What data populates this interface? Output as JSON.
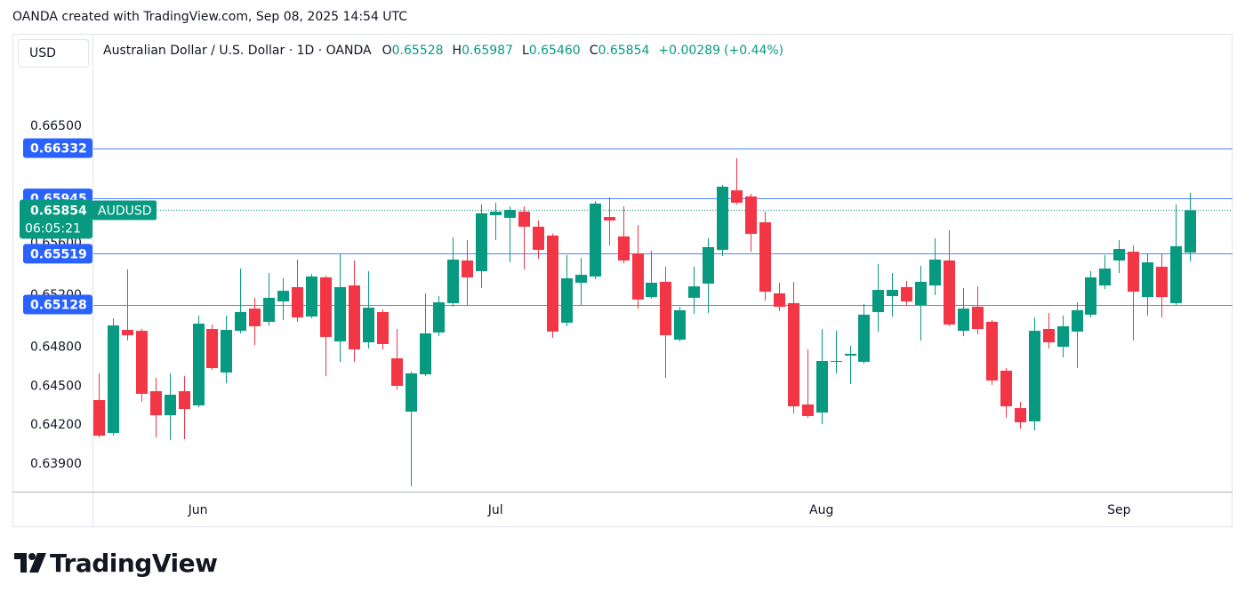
{
  "chart_data": {
    "type": "candlestick",
    "source": "OANDA created with TradingView.com, Sep 08, 2025 14:54 UTC",
    "currency": "USD",
    "title": "Australian Dollar / U.S. Dollar · 1D · OANDA",
    "legend": [
      {
        "key": "O",
        "label": "0.65528"
      },
      {
        "key": "H",
        "label": "0.65987"
      },
      {
        "key": "L",
        "label": "0.65460"
      },
      {
        "key": "C",
        "label": "0.65854"
      }
    ],
    "change": "+0.00289",
    "change_pct": "(+0.44%)",
    "brand": "TradingView",
    "up_color": "#089981",
    "down_color": "#f23645",
    "line_color": "#2962ff",
    "grid": false,
    "ylim": [
      0.63688,
      0.67212
    ],
    "yticks": [
      {
        "value": 0.665,
        "label": "0.66500"
      },
      {
        "value": 0.656,
        "label": "0.65600"
      },
      {
        "value": 0.652,
        "label": "0.65200"
      },
      {
        "value": 0.648,
        "label": "0.64800"
      },
      {
        "value": 0.645,
        "label": "0.64500"
      },
      {
        "value": 0.642,
        "label": "0.64200"
      },
      {
        "value": 0.639,
        "label": "0.63900"
      }
    ],
    "price_lines": [
      0.66332,
      0.65945,
      0.65519,
      0.65128
    ],
    "current_price": {
      "value": 0.65854,
      "symbol": "AUDUSD",
      "countdown": "06:05:21"
    },
    "categories": [
      null,
      null,
      null,
      null,
      null,
      null,
      null,
      "Jun",
      null,
      null,
      null,
      null,
      null,
      null,
      null,
      null,
      null,
      null,
      null,
      null,
      null,
      null,
      null,
      null,
      null,
      null,
      null,
      null,
      "Jul",
      null,
      null,
      null,
      null,
      null,
      null,
      null,
      null,
      null,
      null,
      null,
      null,
      null,
      null,
      null,
      null,
      null,
      null,
      null,
      null,
      null,
      null,
      "Aug",
      null,
      null,
      null,
      null,
      null,
      null,
      null,
      null,
      null,
      null,
      null,
      null,
      null,
      null,
      null,
      null,
      null,
      null,
      null,
      null,
      "Sep",
      null,
      null,
      null,
      null,
      null
    ],
    "open": [
      0.64393,
      0.6414,
      0.64933,
      0.64926,
      0.64461,
      0.64276,
      0.64461,
      0.64352,
      0.6494,
      0.64605,
      0.64926,
      0.65097,
      0.64995,
      0.65152,
      0.65262,
      0.65036,
      0.65337,
      0.64844,
      0.65275,
      0.64837,
      0.6507,
      0.64714,
      0.64304,
      0.64591,
      0.64913,
      0.65139,
      0.65467,
      0.65385,
      0.65816,
      0.65795,
      0.65843,
      0.65727,
      0.65659,
      0.64988,
      0.65296,
      0.65344,
      0.65802,
      0.65652,
      0.65522,
      0.65186,
      0.65303,
      0.64858,
      0.6518,
      0.65289,
      0.65549,
      0.66007,
      0.6596,
      0.65761,
      0.65214,
      0.65139,
      0.64359,
      0.64297,
      0.64687,
      0.64735,
      0.64687,
      0.6507,
      0.65193,
      0.65262,
      0.65125,
      0.65275,
      0.65467,
      0.64926,
      0.65111,
      0.64995,
      0.64619,
      0.64331,
      0.64229,
      0.6494,
      0.64803,
      0.6492,
      0.6505,
      0.65275,
      0.65467,
      0.65535,
      0.65186,
      0.65419,
      0.65139,
      0.65528
    ],
    "high": [
      0.64598,
      0.65022,
      0.65399,
      0.6494,
      0.64564,
      0.64598,
      0.64577,
      0.65043,
      0.64974,
      0.65043,
      0.65405,
      0.6518,
      0.65371,
      0.6533,
      0.65474,
      0.65364,
      0.65351,
      0.65515,
      0.65467,
      0.65385,
      0.65091,
      0.6494,
      0.64612,
      0.65214,
      0.65193,
      0.65645,
      0.65624,
      0.65898,
      0.65912,
      0.65884,
      0.65884,
      0.65775,
      0.65672,
      0.65508,
      0.65487,
      0.65925,
      0.65953,
      0.65884,
      0.65741,
      0.65542,
      0.65419,
      0.65111,
      0.65419,
      0.65638,
      0.66049,
      0.66254,
      0.6598,
      0.65843,
      0.65296,
      0.65303,
      0.64783,
      0.6494,
      0.64926,
      0.6481,
      0.65132,
      0.6544,
      0.65371,
      0.6531,
      0.65426,
      0.65638,
      0.657,
      0.65255,
      0.65268,
      0.65009,
      0.64639,
      0.64379,
      0.65029,
      0.65063,
      0.65043,
      0.65145,
      0.65385,
      0.65508,
      0.65624,
      0.65583,
      0.65522,
      0.65522,
      0.65898,
      0.65987
    ],
    "low": [
      0.64105,
      0.64119,
      0.64851,
      0.64379,
      0.64105,
      0.64085,
      0.64092,
      0.64338,
      0.64625,
      0.64523,
      0.64906,
      0.64817,
      0.64967,
      0.65009,
      0.64995,
      0.65022,
      0.64577,
      0.64687,
      0.64687,
      0.6479,
      0.64783,
      0.64475,
      0.63729,
      0.64577,
      0.64885,
      0.65111,
      0.65118,
      0.65255,
      0.65624,
      0.65453,
      0.65399,
      0.65481,
      0.64872,
      0.64961,
      0.65125,
      0.65323,
      0.65583,
      0.65446,
      0.65097,
      0.65173,
      0.64564,
      0.64844,
      0.65056,
      0.65063,
      0.65501,
      0.65898,
      0.65535,
      0.65159,
      0.65077,
      0.6429,
      0.64256,
      0.64208,
      0.64598,
      0.64516,
      0.64673,
      0.6492,
      0.65036,
      0.65118,
      0.64851,
      0.652,
      0.64961,
      0.64885,
      0.64899,
      0.64509,
      0.64256,
      0.64174,
      0.6416,
      0.6479,
      0.64721,
      0.64639,
      0.65029,
      0.65248,
      0.65371,
      0.64851,
      0.65043,
      0.65029,
      0.65125,
      0.6546
    ],
    "close": [
      0.64119,
      0.64967,
      0.64892,
      0.64441,
      0.64276,
      0.64434,
      0.64324,
      0.64981,
      0.64639,
      0.64933,
      0.6507,
      0.64961,
      0.6518,
      0.65234,
      0.65029,
      0.65344,
      0.64879,
      0.65262,
      0.64783,
      0.65104,
      0.64824,
      0.64502,
      0.64598,
      0.64906,
      0.65145,
      0.65474,
      0.65337,
      0.6583,
      0.65843,
      0.65857,
      0.65727,
      0.65549,
      0.6492,
      0.6533,
      0.65357,
      0.65905,
      0.65775,
      0.65467,
      0.65166,
      0.65296,
      0.64892,
      0.65084,
      0.65268,
      0.6557,
      0.66035,
      0.65912,
      0.65672,
      0.65227,
      0.65111,
      0.64345,
      0.6427,
      0.64694,
      0.64694,
      0.64749,
      0.6505,
      0.65241,
      0.65241,
      0.65152,
      0.65303,
      0.65474,
      0.64974,
      0.65097,
      0.6494,
      0.64543,
      0.64345,
      0.64222,
      0.64926,
      0.64837,
      0.64961,
      0.65084,
      0.65337,
      0.65405,
      0.65556,
      0.65227,
      0.65453,
      0.65186,
      0.65577,
      0.65854
    ]
  }
}
